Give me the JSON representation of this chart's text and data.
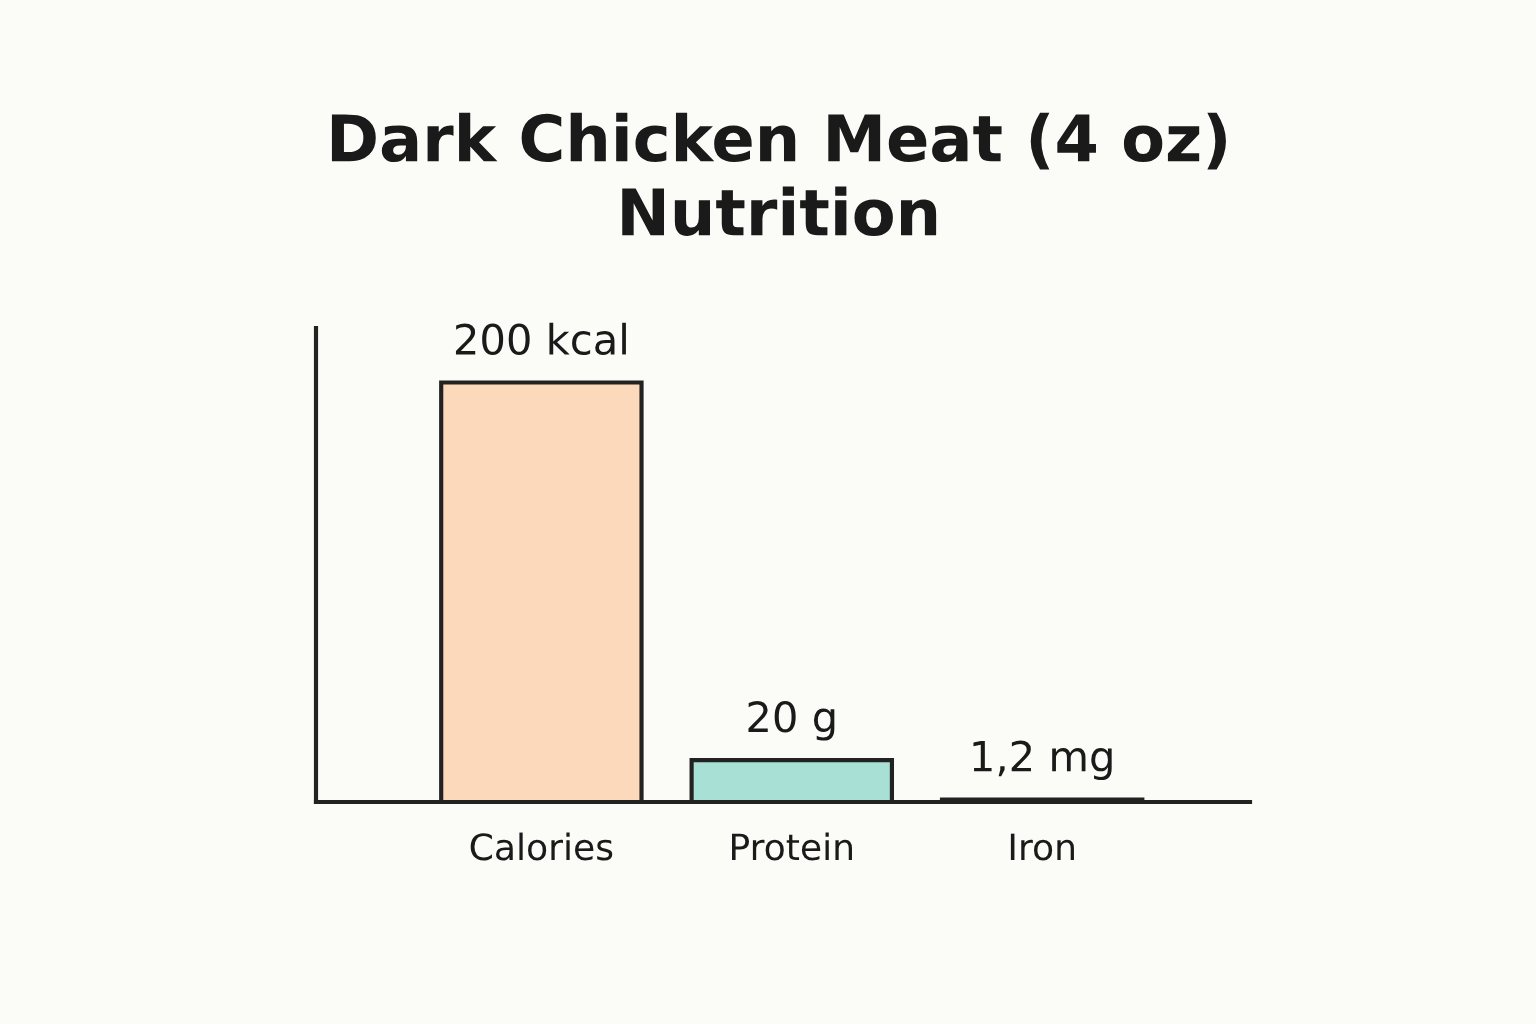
{
  "chart_data": {
    "type": "bar",
    "title": "Dark Chicken Meat (4 oz)\nNutrition",
    "categories": [
      "Calories",
      "Protein",
      "Iron"
    ],
    "values": [
      200,
      20,
      1.2
    ],
    "value_labels": [
      "200 kcal",
      "20 g",
      "1,2 mg"
    ],
    "colors": [
      "#fdd9bc",
      "#a8e0d6",
      "#d9d4f0"
    ]
  }
}
